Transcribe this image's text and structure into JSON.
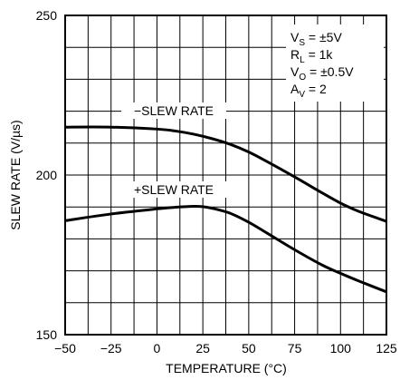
{
  "chart_data": {
    "type": "line",
    "title": "",
    "xlabel": "TEMPERATURE (°C)",
    "ylabel": "SLEW RATE (V/µs)",
    "xlim": [
      -50,
      125
    ],
    "ylim": [
      150,
      250
    ],
    "x_ticks": [
      "−50",
      "−25",
      "0",
      "25",
      "50",
      "75",
      "100",
      "125"
    ],
    "y_ticks": [
      "150",
      "200",
      "250"
    ],
    "grid": true,
    "series": [
      {
        "name": "−SLEW RATE",
        "x": [
          -50,
          -25,
          0,
          10,
          20,
          30,
          40,
          50,
          60,
          75,
          90,
          100,
          110,
          125
        ],
        "y": [
          215,
          215,
          214.4,
          213.8,
          212.8,
          211.4,
          209.6,
          207.2,
          204.2,
          199.4,
          194.4,
          191.2,
          188.6,
          185.5
        ]
      },
      {
        "name": "+SLEW RATE",
        "x": [
          -50,
          -25,
          0,
          10,
          20,
          25,
          30,
          40,
          50,
          60,
          75,
          90,
          100,
          110,
          125
        ],
        "y": [
          185.7,
          187.8,
          189.4,
          189.9,
          190.2,
          190.1,
          189.6,
          188.0,
          185.2,
          181.8,
          176.6,
          171.8,
          169.2,
          166.8,
          163.4
        ]
      }
    ],
    "annotation_lines": [
      {
        "main": "V",
        "sub": "S",
        "rest": " = ±5V"
      },
      {
        "main": "R",
        "sub": "L",
        "rest": " = 1k"
      },
      {
        "main": "V",
        "sub": "O",
        "rest": " = ±0.5V"
      },
      {
        "main": "A",
        "sub": "V",
        "rest": " = 2"
      }
    ]
  }
}
